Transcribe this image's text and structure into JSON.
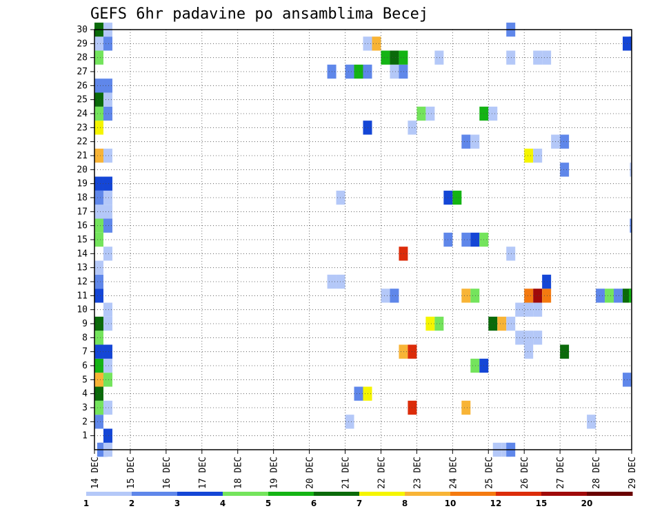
{
  "chart_data": {
    "type": "heatmap",
    "title": "GEFS 6hr padavine po ansamblima Becej",
    "xlabel": "",
    "ylabel": "",
    "x_tick_labels": [
      "14 DEC",
      "15 DEC",
      "16 DEC",
      "17 DEC",
      "18 DEC",
      "19 DEC",
      "20 DEC",
      "21 DEC",
      "22 DEC",
      "23 DEC",
      "24 DEC",
      "25 DEC",
      "26 DEC",
      "27 DEC",
      "28 DEC",
      "29 DEC"
    ],
    "y_tick_labels": [
      "1",
      "2",
      "3",
      "4",
      "5",
      "6",
      "7",
      "8",
      "9",
      "10",
      "11",
      "12",
      "13",
      "14",
      "15",
      "16",
      "17",
      "18",
      "19",
      "20",
      "21",
      "22",
      "23",
      "24",
      "25",
      "26",
      "27",
      "28",
      "29",
      "30"
    ],
    "xlim": [
      0,
      60
    ],
    "ylim": [
      0,
      30
    ],
    "x_unit": "6-hour step from 14 DEC 00Z",
    "grid": true,
    "legend_position": "bottom",
    "levels": [
      "1",
      "2",
      "3",
      "4",
      "5",
      "6",
      "7",
      "8",
      "10",
      "12",
      "15",
      "20"
    ],
    "colors": [
      "#b4c8f8",
      "#5f87ea",
      "#1446d6",
      "#74e45c",
      "#14b414",
      "#0a6a0a",
      "#f5f500",
      "#f8b436",
      "#f47a10",
      "#dc2c0a",
      "#a00a0a",
      "#6a0000"
    ],
    "cells": [
      {
        "member": 0,
        "step": 0.3,
        "cat": 1
      },
      {
        "member": 0,
        "step": 0.5,
        "cat": 1
      },
      {
        "member": 0,
        "step": 1,
        "cat": 0
      },
      {
        "member": 0,
        "step": 44.5,
        "cat": 0
      },
      {
        "member": 0,
        "step": 45.5,
        "cat": 0
      },
      {
        "member": 0,
        "step": 46,
        "cat": 1
      },
      {
        "member": 1,
        "step": 1,
        "cat": 2
      },
      {
        "member": 2,
        "step": 0,
        "cat": 1
      },
      {
        "member": 2,
        "step": 28,
        "cat": 0
      },
      {
        "member": 2,
        "step": 55,
        "cat": 0
      },
      {
        "member": 3,
        "step": 0,
        "cat": 3
      },
      {
        "member": 3,
        "step": 1,
        "cat": 0
      },
      {
        "member": 3,
        "step": 35,
        "cat": 9
      },
      {
        "member": 3,
        "step": 41,
        "cat": 7
      },
      {
        "member": 4,
        "step": 0,
        "cat": 5
      },
      {
        "member": 4,
        "step": 29,
        "cat": 1
      },
      {
        "member": 4,
        "step": 30,
        "cat": 6
      },
      {
        "member": 5,
        "step": 0,
        "cat": 7
      },
      {
        "member": 5,
        "step": 1,
        "cat": 3
      },
      {
        "member": 5,
        "step": 59,
        "cat": 1
      },
      {
        "member": 6,
        "step": 0,
        "cat": 4
      },
      {
        "member": 6,
        "step": 1,
        "cat": 0
      },
      {
        "member": 6,
        "step": 42,
        "cat": 3
      },
      {
        "member": 6,
        "step": 43,
        "cat": 2
      },
      {
        "member": 7,
        "step": 0,
        "cat": 2
      },
      {
        "member": 7,
        "step": 1,
        "cat": 2
      },
      {
        "member": 7,
        "step": 34,
        "cat": 7
      },
      {
        "member": 7,
        "step": 35,
        "cat": 9
      },
      {
        "member": 7,
        "step": 48,
        "cat": 0
      },
      {
        "member": 7,
        "step": 52,
        "cat": 5
      },
      {
        "member": 8,
        "step": 0,
        "cat": 3
      },
      {
        "member": 8,
        "step": 47,
        "cat": 0
      },
      {
        "member": 8,
        "step": 48,
        "cat": 0
      },
      {
        "member": 8,
        "step": 49,
        "cat": 0
      },
      {
        "member": 9,
        "step": 0,
        "cat": 5
      },
      {
        "member": 9,
        "step": 1,
        "cat": 0
      },
      {
        "member": 9,
        "step": 37,
        "cat": 6
      },
      {
        "member": 9,
        "step": 38,
        "cat": 3
      },
      {
        "member": 9,
        "step": 44,
        "cat": 5
      },
      {
        "member": 9,
        "step": 45,
        "cat": 7
      },
      {
        "member": 9,
        "step": 46,
        "cat": 0
      },
      {
        "member": 10,
        "step": 1,
        "cat": 0
      },
      {
        "member": 10,
        "step": 47,
        "cat": 0
      },
      {
        "member": 10,
        "step": 48,
        "cat": 0
      },
      {
        "member": 10,
        "step": 49,
        "cat": 0
      },
      {
        "member": 11,
        "step": 0,
        "cat": 2
      },
      {
        "member": 11,
        "step": 32,
        "cat": 0
      },
      {
        "member": 11,
        "step": 33,
        "cat": 1
      },
      {
        "member": 11,
        "step": 41,
        "cat": 7
      },
      {
        "member": 11,
        "step": 42,
        "cat": 3
      },
      {
        "member": 11,
        "step": 48,
        "cat": 8
      },
      {
        "member": 11,
        "step": 49,
        "cat": 10
      },
      {
        "member": 11,
        "step": 50,
        "cat": 8
      },
      {
        "member": 11,
        "step": 56,
        "cat": 1
      },
      {
        "member": 11,
        "step": 57,
        "cat": 3
      },
      {
        "member": 11,
        "step": 58,
        "cat": 1
      },
      {
        "member": 11,
        "step": 59,
        "cat": 5
      },
      {
        "member": 11,
        "step": 59.7,
        "cat": 4
      },
      {
        "member": 12,
        "step": 0,
        "cat": 1
      },
      {
        "member": 12,
        "step": 26,
        "cat": 0
      },
      {
        "member": 12,
        "step": 27,
        "cat": 0
      },
      {
        "member": 12,
        "step": 50,
        "cat": 2
      },
      {
        "member": 13,
        "step": 0,
        "cat": 0
      },
      {
        "member": 14,
        "step": 1,
        "cat": 0
      },
      {
        "member": 14,
        "step": 34,
        "cat": 9
      },
      {
        "member": 14,
        "step": 46,
        "cat": 0
      },
      {
        "member": 15,
        "step": 0,
        "cat": 3
      },
      {
        "member": 15,
        "step": 39,
        "cat": 1
      },
      {
        "member": 15,
        "step": 41,
        "cat": 1
      },
      {
        "member": 15,
        "step": 42,
        "cat": 2
      },
      {
        "member": 15,
        "step": 43,
        "cat": 3
      },
      {
        "member": 16,
        "step": 0,
        "cat": 3
      },
      {
        "member": 16,
        "step": 1,
        "cat": 1
      },
      {
        "member": 16,
        "step": 59.8,
        "cat": 1
      },
      {
        "member": 17,
        "step": 0,
        "cat": 0
      },
      {
        "member": 17,
        "step": 1,
        "cat": 0
      },
      {
        "member": 18,
        "step": 0,
        "cat": 1
      },
      {
        "member": 18,
        "step": 1,
        "cat": 0
      },
      {
        "member": 18,
        "step": 27,
        "cat": 0
      },
      {
        "member": 18,
        "step": 39,
        "cat": 2
      },
      {
        "member": 18,
        "step": 40,
        "cat": 4
      },
      {
        "member": 19,
        "step": 0,
        "cat": 2
      },
      {
        "member": 19,
        "step": 1,
        "cat": 2
      },
      {
        "member": 20,
        "step": 52,
        "cat": 1
      },
      {
        "member": 20,
        "step": 59.8,
        "cat": 0
      },
      {
        "member": 21,
        "step": 0,
        "cat": 7
      },
      {
        "member": 21,
        "step": 1,
        "cat": 0
      },
      {
        "member": 21,
        "step": 48,
        "cat": 6
      },
      {
        "member": 21,
        "step": 49,
        "cat": 0
      },
      {
        "member": 22,
        "step": 41,
        "cat": 1
      },
      {
        "member": 22,
        "step": 42,
        "cat": 0
      },
      {
        "member": 22,
        "step": 51,
        "cat": 0
      },
      {
        "member": 22,
        "step": 52,
        "cat": 1
      },
      {
        "member": 23,
        "step": 0,
        "cat": 6
      },
      {
        "member": 23,
        "step": 30,
        "cat": 2
      },
      {
        "member": 23,
        "step": 35,
        "cat": 0
      },
      {
        "member": 24,
        "step": 0,
        "cat": 3
      },
      {
        "member": 24,
        "step": 1,
        "cat": 1
      },
      {
        "member": 24,
        "step": 36,
        "cat": 3
      },
      {
        "member": 24,
        "step": 37,
        "cat": 0
      },
      {
        "member": 24,
        "step": 43,
        "cat": 4
      },
      {
        "member": 24,
        "step": 44,
        "cat": 0
      },
      {
        "member": 25,
        "step": 0,
        "cat": 5
      },
      {
        "member": 25,
        "step": 1,
        "cat": 0
      },
      {
        "member": 26,
        "step": 0,
        "cat": 1
      },
      {
        "member": 26,
        "step": 1,
        "cat": 1
      },
      {
        "member": 27,
        "step": 26,
        "cat": 1
      },
      {
        "member": 27,
        "step": 28,
        "cat": 1
      },
      {
        "member": 27,
        "step": 29,
        "cat": 4
      },
      {
        "member": 27,
        "step": 30,
        "cat": 1
      },
      {
        "member": 27,
        "step": 33,
        "cat": 0
      },
      {
        "member": 27,
        "step": 34,
        "cat": 1
      },
      {
        "member": 28,
        "step": 0,
        "cat": 3
      },
      {
        "member": 28,
        "step": 32,
        "cat": 4
      },
      {
        "member": 28,
        "step": 33,
        "cat": 5
      },
      {
        "member": 28,
        "step": 34,
        "cat": 4
      },
      {
        "member": 28,
        "step": 38,
        "cat": 0
      },
      {
        "member": 28,
        "step": 46,
        "cat": 0
      },
      {
        "member": 28,
        "step": 49,
        "cat": 0
      },
      {
        "member": 28,
        "step": 50,
        "cat": 0
      },
      {
        "member": 29,
        "step": 0,
        "cat": 0
      },
      {
        "member": 29,
        "step": 1,
        "cat": 1
      },
      {
        "member": 29,
        "step": 30,
        "cat": 0
      },
      {
        "member": 29,
        "step": 31,
        "cat": 7
      },
      {
        "member": 29,
        "step": 59,
        "cat": 2
      },
      {
        "member": 29,
        "step": 59.7,
        "cat": 2
      },
      {
        "member": 30,
        "step": 0,
        "cat": 5
      },
      {
        "member": 30,
        "step": 1,
        "cat": 0
      },
      {
        "member": 30,
        "step": 46,
        "cat": 1
      }
    ]
  }
}
